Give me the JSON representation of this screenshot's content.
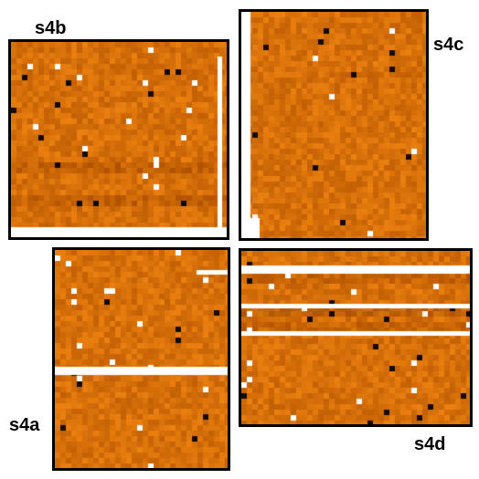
{
  "panels": [
    {
      "id": "s4b",
      "label": "s4b"
    },
    {
      "id": "s4c",
      "label": "s4c"
    },
    {
      "id": "s4a",
      "label": "s4a"
    },
    {
      "id": "s4d",
      "label": "s4d"
    }
  ],
  "colors": {
    "base": "#d7700a",
    "light": "#f0900e",
    "dark": "#b45a08",
    "white": "#ffffff",
    "black": "#000000",
    "border": "#000000"
  }
}
